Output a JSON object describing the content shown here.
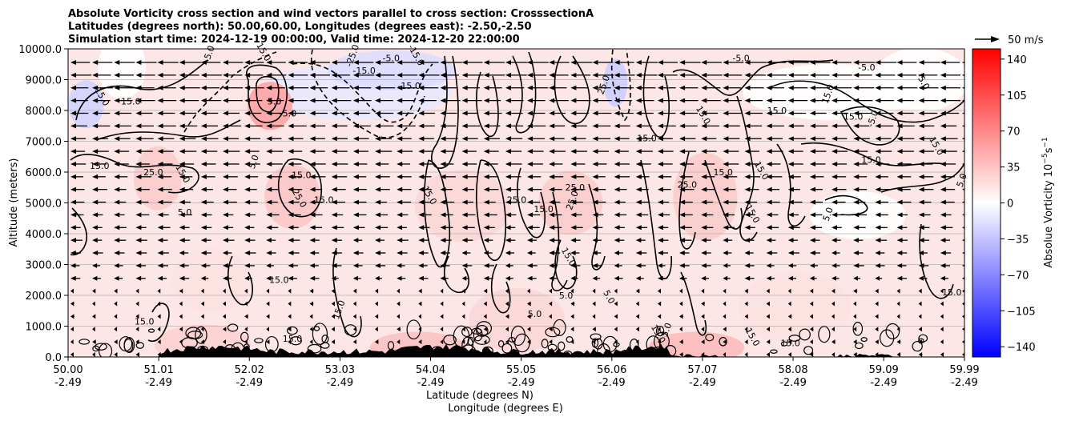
{
  "chart_data": {
    "type": "heatmap",
    "title_lines": [
      "Absolute Vorticity cross section and wind vectors parallel to cross section: CrosssectionA",
      "Latitudes (degrees north): 50.00,60.00, Longitudes (degrees east): -2.50,-2.50",
      "Simulation start time: 2024-12-19 00:00:00, Valid time: 2024-12-20 22:00:00"
    ],
    "xlabel_lines": [
      "Latitude (degrees N)",
      "Longitude (degrees E)"
    ],
    "ylabel": "Altitude (meters)",
    "x_ticks": [
      {
        "lat": "50.00",
        "lon": "-2.49"
      },
      {
        "lat": "51.01",
        "lon": "-2.49"
      },
      {
        "lat": "52.02",
        "lon": "-2.49"
      },
      {
        "lat": "53.03",
        "lon": "-2.49"
      },
      {
        "lat": "54.04",
        "lon": "-2.49"
      },
      {
        "lat": "55.05",
        "lon": "-2.49"
      },
      {
        "lat": "56.06",
        "lon": "-2.49"
      },
      {
        "lat": "57.07",
        "lon": "-2.49"
      },
      {
        "lat": "58.08",
        "lon": "-2.49"
      },
      {
        "lat": "59.09",
        "lon": "-2.49"
      },
      {
        "lat": "59.99",
        "lon": "-2.49"
      }
    ],
    "y_ticks": [
      "0.0",
      "1000.0",
      "2000.0",
      "3000.0",
      "4000.0",
      "5000.0",
      "6000.0",
      "7000.0",
      "8000.0",
      "9000.0",
      "10000.0"
    ],
    "xlim": [
      50.0,
      59.99
    ],
    "ylim": [
      0,
      10000
    ],
    "grid": "horizontal",
    "colorbar": {
      "label": "Absolue Vorticity 10",
      "label_exponent": "−5",
      "label_unit_rest": "s",
      "label_unit_exp": "−1",
      "ticks": [
        "140",
        "105",
        "70",
        "35",
        "0",
        "−35",
        "−70",
        "−105",
        "−140"
      ],
      "range": [
        -150,
        150
      ],
      "colormap": "bwr",
      "colors": {
        "negative": "#0000ff",
        "zero": "#ffffff",
        "positive": "#ff0000"
      }
    },
    "quiver_key": {
      "label": "50 m/s"
    },
    "contour_labels": [
      {
        "text": "-25.0",
        "lat": 53.2,
        "alt": 9750
      },
      {
        "text": "-15.0",
        "lat": 53.3,
        "alt": 9200
      },
      {
        "text": "-5.0",
        "lat": 53.6,
        "alt": 9600
      },
      {
        "text": "-15.0",
        "lat": 53.85,
        "alt": 9750
      },
      {
        "text": "-15.0",
        "lat": 53.8,
        "alt": 8700
      },
      {
        "text": "-5.0",
        "lat": 51.6,
        "alt": 9800
      },
      {
        "text": "15.0",
        "lat": 52.15,
        "alt": 9850
      },
      {
        "text": "-5.0",
        "lat": 57.5,
        "alt": 9600
      },
      {
        "text": "-5.0",
        "lat": 58.9,
        "alt": 9300
      },
      {
        "text": "-5.0",
        "lat": 59.5,
        "alt": 8900
      },
      {
        "text": "25.0",
        "lat": 56.0,
        "alt": 8800
      },
      {
        "text": "15.0",
        "lat": 50.7,
        "alt": 8200
      },
      {
        "text": "15.0",
        "lat": 50.35,
        "alt": 8400
      },
      {
        "text": "5.0",
        "lat": 52.3,
        "alt": 8200
      },
      {
        "text": "-5.0",
        "lat": 52.45,
        "alt": 7800
      },
      {
        "text": "15.0",
        "lat": 58.5,
        "alt": 8500
      },
      {
        "text": "15.0",
        "lat": 58.75,
        "alt": 7700
      },
      {
        "text": "15.0",
        "lat": 56.45,
        "alt": 7000
      },
      {
        "text": "15.0",
        "lat": 57.05,
        "alt": 7800
      },
      {
        "text": "15.0",
        "lat": 57.9,
        "alt": 7900
      },
      {
        "text": "-5.0",
        "lat": 59.0,
        "alt": 7700
      },
      {
        "text": "15.0",
        "lat": 59.65,
        "alt": 6800
      },
      {
        "text": "15.0",
        "lat": 50.35,
        "alt": 6100
      },
      {
        "text": "25.0",
        "lat": 50.95,
        "alt": 5900
      },
      {
        "text": "15.0",
        "lat": 51.25,
        "alt": 5900
      },
      {
        "text": "5.0",
        "lat": 52.1,
        "alt": 6300
      },
      {
        "text": "15.0",
        "lat": 52.6,
        "alt": 5800
      },
      {
        "text": "25.0",
        "lat": 52.55,
        "alt": 5100
      },
      {
        "text": "15.0",
        "lat": 52.85,
        "alt": 5000
      },
      {
        "text": "25.0",
        "lat": 55.65,
        "alt": 5400
      },
      {
        "text": "25.0",
        "lat": 55.65,
        "alt": 5050
      },
      {
        "text": "25.0",
        "lat": 56.9,
        "alt": 5500
      },
      {
        "text": "15.0",
        "lat": 57.3,
        "alt": 5900
      },
      {
        "text": "15.0",
        "lat": 57.7,
        "alt": 6000
      },
      {
        "text": "15.0",
        "lat": 58.95,
        "alt": 6300
      },
      {
        "text": "5.0",
        "lat": 59.99,
        "alt": 5700
      },
      {
        "text": "15.0",
        "lat": 54.0,
        "alt": 5200
      },
      {
        "text": "25.0",
        "lat": 55.0,
        "alt": 5000
      },
      {
        "text": "15.0",
        "lat": 55.3,
        "alt": 4700
      },
      {
        "text": "15.0",
        "lat": 57.6,
        "alt": 4600
      },
      {
        "text": "5.0",
        "lat": 58.5,
        "alt": 4600
      },
      {
        "text": "5.0",
        "lat": 51.3,
        "alt": 4600
      },
      {
        "text": "15.0",
        "lat": 55.55,
        "alt": 3200
      },
      {
        "text": "15.0",
        "lat": 52.35,
        "alt": 2400
      },
      {
        "text": "15.0",
        "lat": 50.85,
        "alt": 1050
      },
      {
        "text": "15.0",
        "lat": 53.05,
        "alt": 1500
      },
      {
        "text": "5.0",
        "lat": 55.55,
        "alt": 1900
      },
      {
        "text": "5.0",
        "lat": 55.2,
        "alt": 1300
      },
      {
        "text": "5.0",
        "lat": 56.0,
        "alt": 1900
      },
      {
        "text": "15.0",
        "lat": 59.85,
        "alt": 2000
      },
      {
        "text": "5.0",
        "lat": 56.7,
        "alt": 850
      },
      {
        "text": "15.0",
        "lat": 57.6,
        "alt": 600
      },
      {
        "text": "15.0",
        "lat": 58.05,
        "alt": 350
      },
      {
        "text": "15.0",
        "lat": 52.5,
        "alt": 500
      },
      {
        "text": "15.0",
        "lat": 56.55,
        "alt": 700
      }
    ]
  }
}
